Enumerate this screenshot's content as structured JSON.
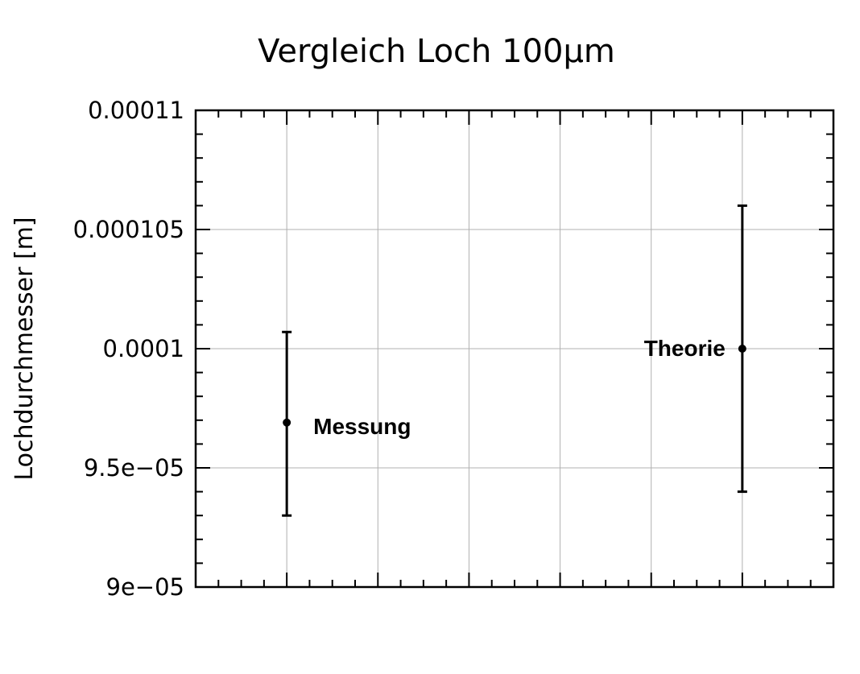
{
  "chart_data": {
    "type": "scatter",
    "title": "Vergleich Loch 100µm",
    "xlabel": "",
    "ylabel": "Lochdurchmesser [m]",
    "ylim": [
      9e-05,
      0.00011
    ],
    "xlim": [
      0,
      7
    ],
    "yticks": [
      {
        "value": 9e-05,
        "label": "9e−05"
      },
      {
        "value": 9.5e-05,
        "label": "9.5e−05"
      },
      {
        "value": 0.0001,
        "label": "0.0001"
      },
      {
        "value": 0.000105,
        "label": "0.000105"
      },
      {
        "value": 0.00011,
        "label": "0.00011"
      }
    ],
    "xgrid": [
      1,
      2,
      3,
      4,
      5,
      6
    ],
    "grid": true,
    "points": [
      {
        "label": "Messung",
        "x": 1,
        "y": 9.69e-05,
        "err_low": 9.3e-05,
        "err_high": 0.0001007
      },
      {
        "label": "Theorie",
        "x": 6,
        "y": 0.0001,
        "err_low": 9.4e-05,
        "err_high": 0.000106
      }
    ],
    "colors": {
      "marker": "#000000",
      "grid": "#b0b0b0",
      "axis": "#000000"
    }
  }
}
